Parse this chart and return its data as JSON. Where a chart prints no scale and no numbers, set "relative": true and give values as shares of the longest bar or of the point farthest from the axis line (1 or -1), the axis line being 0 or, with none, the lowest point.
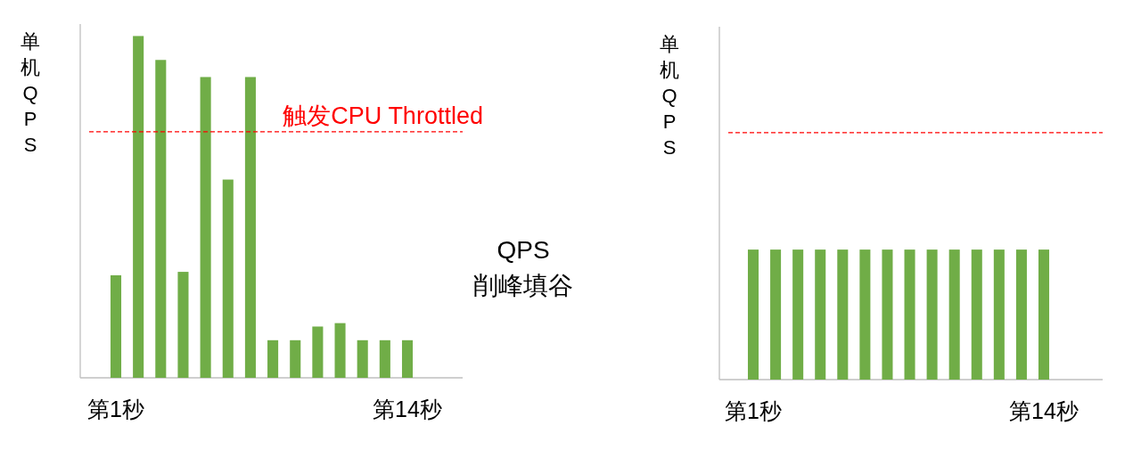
{
  "chart_data": [
    {
      "type": "bar",
      "ylabel": "单机QPS",
      "categories": [
        "第1秒",
        null,
        null,
        null,
        null,
        null,
        null,
        null,
        null,
        null,
        null,
        null,
        null,
        "第14秒"
      ],
      "values": [
        0.3,
        1,
        0.93,
        0.31,
        0.88,
        0.58,
        0.88,
        0.11,
        0.11,
        0.15,
        0.16,
        0.11,
        0.11,
        0.11
      ],
      "color": "#70ad47",
      "relative": true,
      "ref_lines": [
        {
          "axis": "y",
          "value": 0.72,
          "label": "触发CPU Throttled",
          "color": "#ff0000",
          "line_style": "dashed"
        }
      ]
    },
    {
      "type": "other",
      "annotations": [
        "QPS 削峰填谷"
      ]
    },
    {
      "type": "bar",
      "ylabel": "单机QPS",
      "categories": [
        "第1秒",
        null,
        null,
        null,
        null,
        null,
        null,
        null,
        null,
        null,
        null,
        null,
        null,
        "第14秒"
      ],
      "values": [
        1,
        1,
        1,
        1,
        1,
        1,
        1,
        1,
        1,
        1,
        1,
        1,
        1,
        1
      ],
      "color": "#70ad47",
      "relative": true,
      "ref_lines": [
        {
          "axis": "y",
          "value": 1.9,
          "color": "#ff0000",
          "line_style": "dashed"
        }
      ]
    }
  ]
}
